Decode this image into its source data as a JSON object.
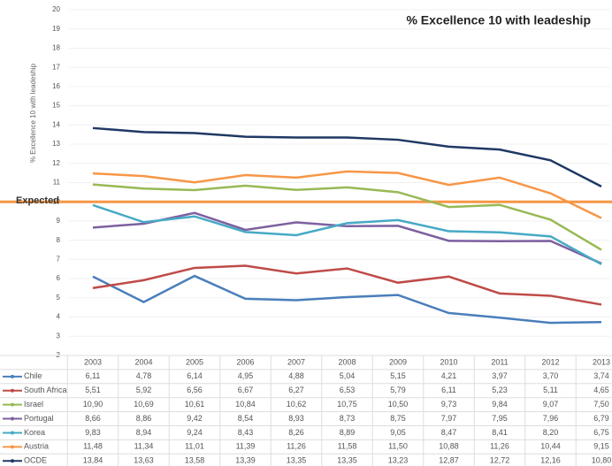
{
  "chart_data": {
    "type": "line",
    "title": "% Excellence 10 with leadeship",
    "y_label": "% Excellence 10 with leadeship",
    "categories": [
      "2003",
      "2004",
      "2005",
      "2006",
      "2007",
      "2008",
      "2009",
      "2010",
      "2011",
      "2012",
      "2013"
    ],
    "ylim": [
      2,
      20
    ],
    "yticks": [
      2,
      3,
      4,
      5,
      6,
      7,
      8,
      9,
      10,
      11,
      12,
      13,
      14,
      15,
      16,
      17,
      18,
      19,
      20
    ],
    "grid": true,
    "reference_line": {
      "label": "Expected",
      "value": 10,
      "color": "#f79646"
    },
    "series": [
      {
        "name": "Chile",
        "color": "#4a7ebb",
        "values": [
          6.11,
          4.78,
          6.14,
          4.95,
          4.88,
          5.04,
          5.15,
          4.21,
          3.97,
          3.7,
          3.74
        ],
        "value_labels": [
          "6,11",
          "4,78",
          "6,14",
          "4,95",
          "4,88",
          "5,04",
          "5,15",
          "4,21",
          "3,97",
          "3,70",
          "3,74"
        ]
      },
      {
        "name": "South Africa",
        "color": "#be4b48",
        "values": [
          5.51,
          5.92,
          6.56,
          6.67,
          6.27,
          6.53,
          5.79,
          6.11,
          5.23,
          5.11,
          4.65
        ],
        "value_labels": [
          "5,51",
          "5,92",
          "6,56",
          "6,67",
          "6,27",
          "6,53",
          "5,79",
          "6,11",
          "5,23",
          "5,11",
          "4,65"
        ]
      },
      {
        "name": "Israel",
        "color": "#98b954",
        "values": [
          10.9,
          10.69,
          10.61,
          10.84,
          10.62,
          10.75,
          10.5,
          9.73,
          9.84,
          9.07,
          7.5
        ],
        "value_labels": [
          "10,90",
          "10,69",
          "10,61",
          "10,84",
          "10,62",
          "10,75",
          "10,50",
          "9,73",
          "9,84",
          "9,07",
          "7,50"
        ]
      },
      {
        "name": "Portugal",
        "color": "#7d60a0",
        "values": [
          8.66,
          8.86,
          9.42,
          8.54,
          8.93,
          8.73,
          8.75,
          7.97,
          7.95,
          7.96,
          6.79
        ],
        "value_labels": [
          "8,66",
          "8,86",
          "9,42",
          "8,54",
          "8,93",
          "8,73",
          "8,75",
          "7,97",
          "7,95",
          "7,96",
          "6,79"
        ]
      },
      {
        "name": "Korea",
        "color": "#46aac5",
        "values": [
          9.83,
          8.94,
          9.24,
          8.43,
          8.26,
          8.89,
          9.05,
          8.47,
          8.41,
          8.2,
          6.75
        ],
        "value_labels": [
          "9,83",
          "8,94",
          "9,24",
          "8,43",
          "8,26",
          "8,89",
          "9,05",
          "8,47",
          "8,41",
          "8,20",
          "6,75"
        ]
      },
      {
        "name": "Austria",
        "color": "#f79646",
        "values": [
          11.48,
          11.34,
          11.01,
          11.39,
          11.26,
          11.58,
          11.5,
          10.88,
          11.26,
          10.44,
          9.15
        ],
        "value_labels": [
          "11,48",
          "11,34",
          "11,01",
          "11,39",
          "11,26",
          "11,58",
          "11,50",
          "10,88",
          "11,26",
          "10,44",
          "9,15"
        ]
      },
      {
        "name": "OCDE",
        "color": "#1f3864",
        "values": [
          13.84,
          13.63,
          13.58,
          13.39,
          13.35,
          13.35,
          13.23,
          12.87,
          12.72,
          12.16,
          10.8
        ],
        "value_labels": [
          "13,84",
          "13,63",
          "13,58",
          "13,39",
          "13,35",
          "13,35",
          "13,23",
          "12,87",
          "12,72",
          "12,16",
          "10,80"
        ]
      }
    ]
  }
}
